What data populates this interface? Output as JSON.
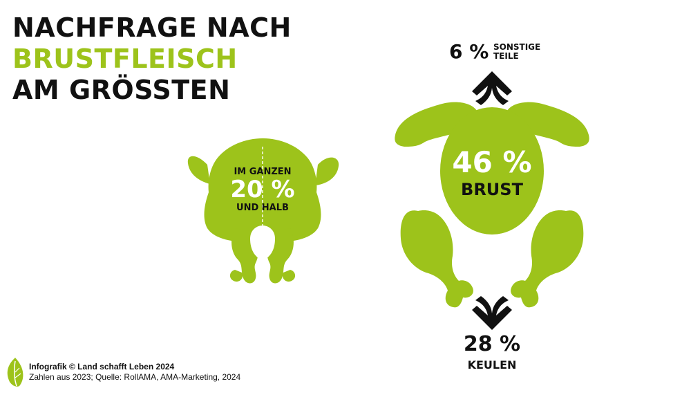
{
  "headline": {
    "line1": "NACHFRAGE NACH",
    "line2": "BRUSTFLEISCH",
    "line3": "AM GRÖSSTEN"
  },
  "whole_chicken": {
    "label_top": "IM GANZEN",
    "percent": "20 %",
    "label_bottom": "UND HALB"
  },
  "breast": {
    "percent": "46 %",
    "label": "BRUST"
  },
  "other_parts": {
    "percent": "6 %",
    "label_line1": "SONSTIGE",
    "label_line2": "TEILE"
  },
  "legs": {
    "percent": "28 %",
    "label": "KEULEN"
  },
  "footer": {
    "credit": "Infografik © Land schafft Leben 2024",
    "source": "Zahlen aus 2023; Quelle: RollAMA, AMA-Marketing, 2024"
  },
  "colors": {
    "accent_green": "#9dc31b",
    "text_dark": "#111111",
    "background": "#ffffff"
  },
  "icons": [
    "whole-chicken-icon",
    "chicken-breast-icon",
    "chicken-wing-icon",
    "drumstick-icon",
    "up-arrow-icon",
    "down-arrow-icon",
    "leaf-logo-icon"
  ]
}
